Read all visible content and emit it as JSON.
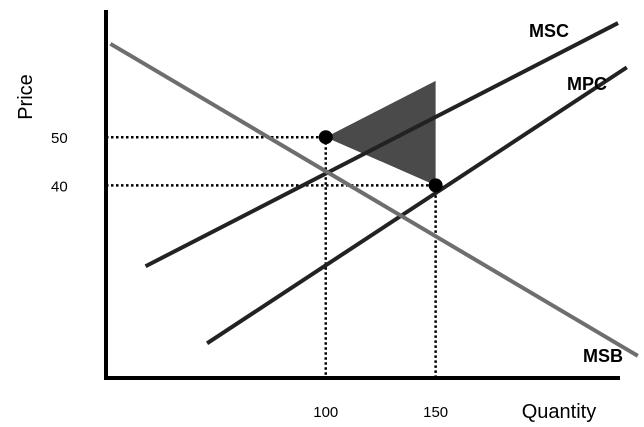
{
  "chart_data": {
    "type": "line",
    "title": "",
    "xlabel": "Quantity",
    "ylabel": "Price",
    "xlim": [
      0,
      243
    ],
    "ylim": [
      0,
      76
    ],
    "x_ticks": [
      {
        "value": 100,
        "label": "100"
      },
      {
        "value": 150,
        "label": "150"
      }
    ],
    "y_ticks": [
      {
        "value": 50,
        "label": "50"
      },
      {
        "value": 40,
        "label": "40"
      }
    ],
    "series": [
      {
        "name": "MSC",
        "color": "#222222",
        "x": [
          18,
          233
        ],
        "y": [
          23.2,
          73.7
        ]
      },
      {
        "name": "MPC",
        "color": "#222222",
        "x": [
          46,
          237
        ],
        "y": [
          7.2,
          64.5
        ]
      },
      {
        "name": "MSB",
        "color": "#6e6e6e",
        "x": [
          2,
          242
        ],
        "y": [
          69.4,
          4.6
        ]
      }
    ],
    "points": [
      {
        "x": 100,
        "y": 50,
        "label": ""
      },
      {
        "x": 150,
        "y": 40,
        "label": ""
      }
    ],
    "reference_lines": [
      {
        "from": [
          0,
          50
        ],
        "to": [
          100,
          50
        ]
      },
      {
        "from": [
          100,
          50
        ],
        "to": [
          100,
          0
        ]
      },
      {
        "from": [
          0,
          40
        ],
        "to": [
          150,
          40
        ]
      },
      {
        "from": [
          150,
          40
        ],
        "to": [
          150,
          0
        ]
      }
    ],
    "shaded_region": {
      "color": "#4a4a4a",
      "vertices": [
        [
          100,
          50
        ],
        [
          150,
          61.7
        ],
        [
          150,
          40
        ]
      ]
    },
    "grid": false,
    "legend": "none"
  }
}
